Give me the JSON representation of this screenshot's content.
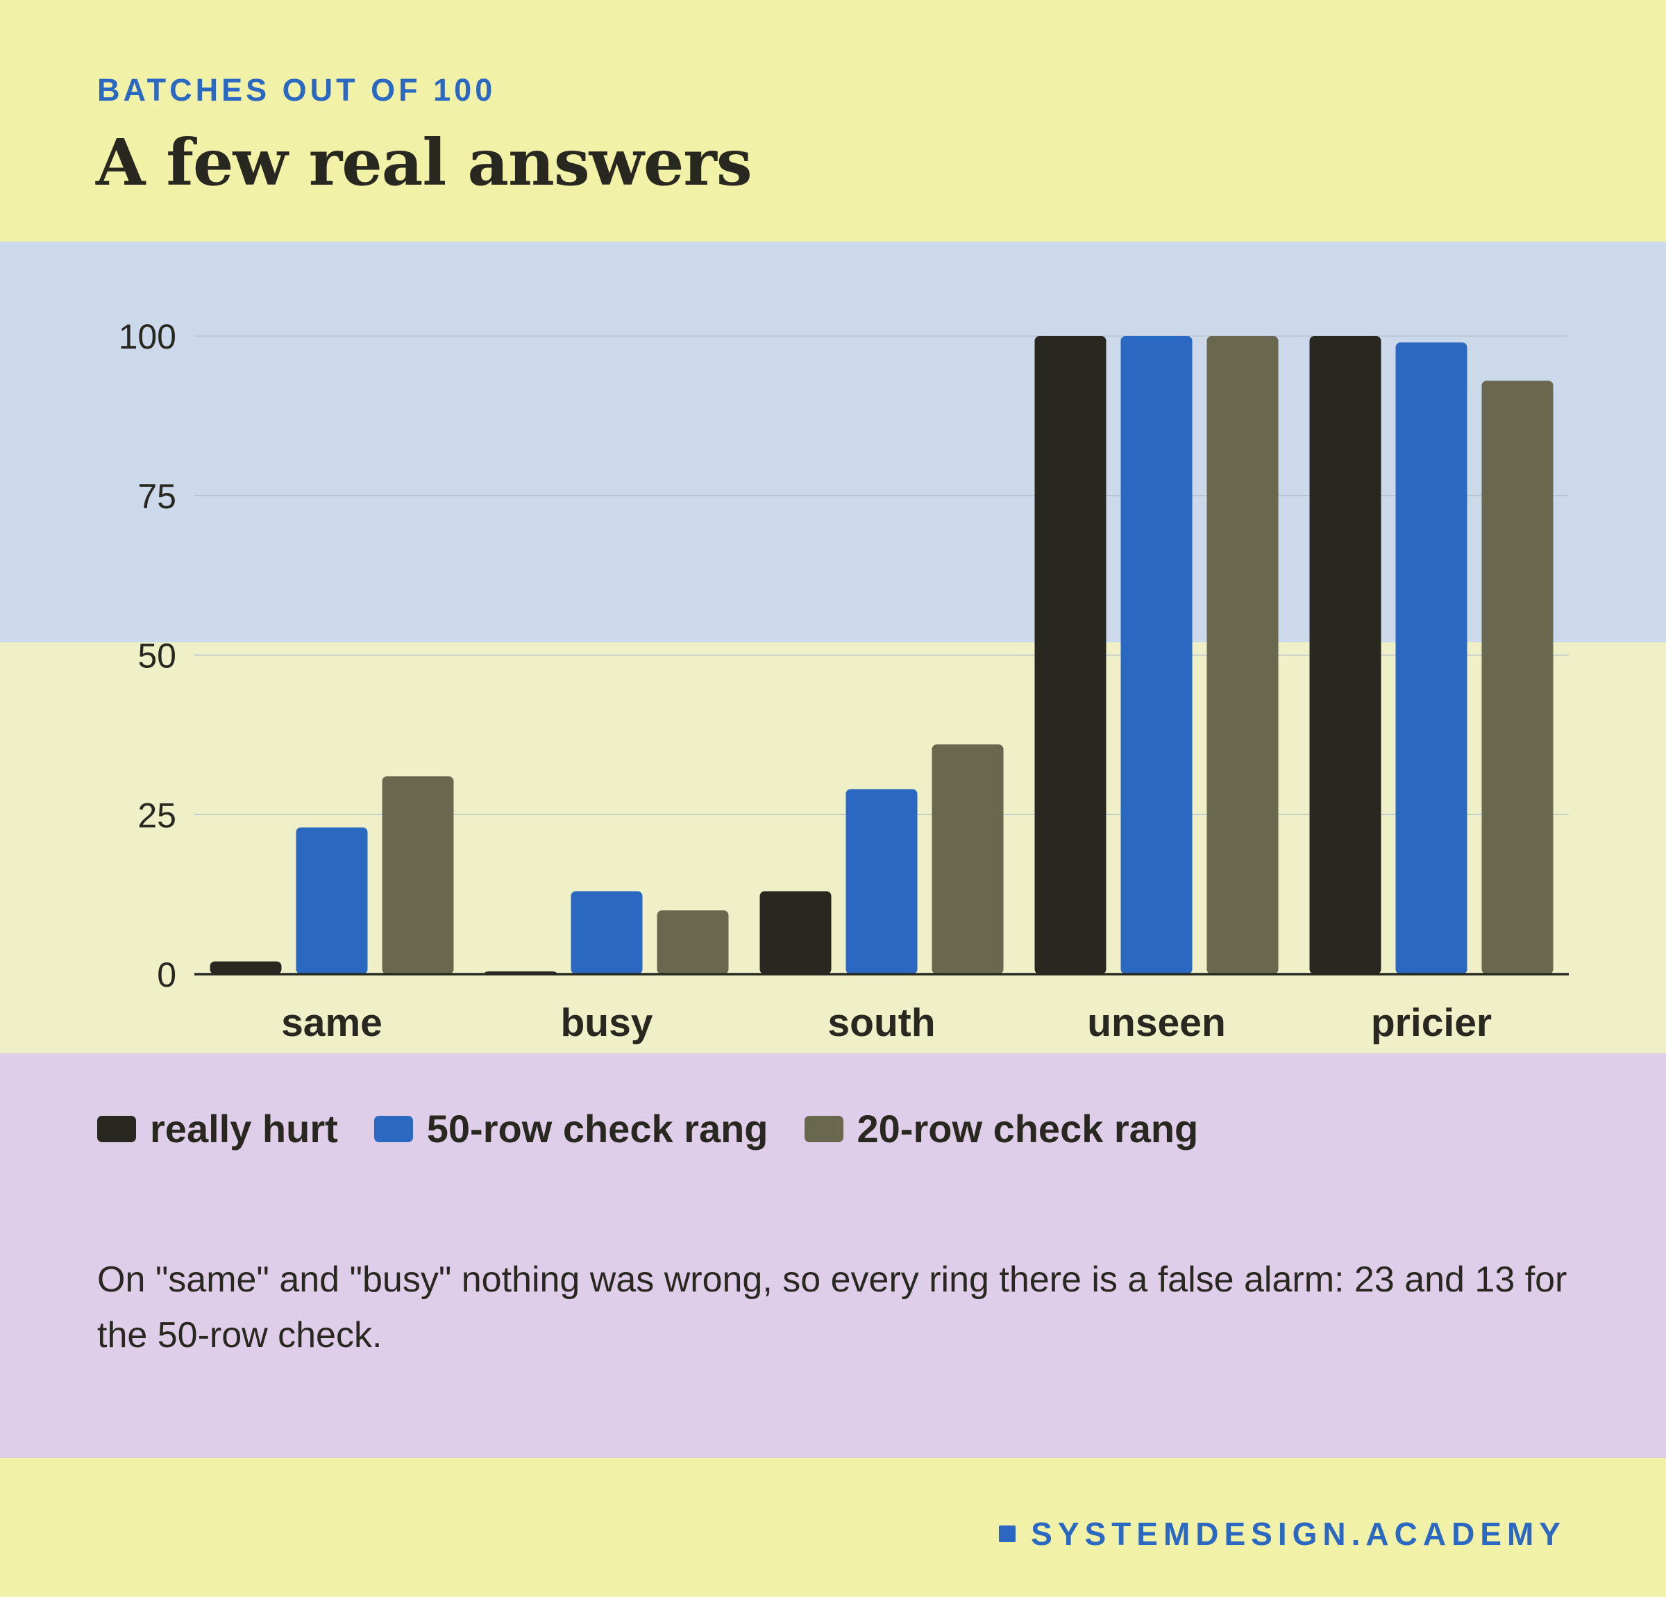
{
  "header": {
    "eyebrow": "BATCHES OUT OF 100",
    "title": "A few real answers"
  },
  "chart_data": {
    "type": "bar",
    "categories": [
      "same",
      "busy",
      "south",
      "unseen",
      "pricier"
    ],
    "series": [
      {
        "name": "really hurt",
        "color": "#292820",
        "values": [
          2,
          0,
          13,
          100,
          100
        ]
      },
      {
        "name": "50-row check rang",
        "color": "#2a68c1",
        "values": [
          23,
          13,
          29,
          100,
          99
        ]
      },
      {
        "name": "20-row check rang",
        "color": "#69684e",
        "values": [
          31,
          10,
          36,
          100,
          93
        ]
      }
    ],
    "ylim": [
      0,
      100
    ],
    "yticks": [
      0,
      25,
      50,
      75,
      100
    ],
    "grid": true,
    "bands": [
      {
        "from": 52,
        "to": 115,
        "color": "#cbd9ea"
      },
      {
        "from": -13,
        "to": 52,
        "color": "#f0f0c8"
      }
    ],
    "legend_position": "bottom-left"
  },
  "caption": "On \"same\" and \"busy\" nothing was wrong, so every ring there is a false alarm: 23 and 13 for the 50-row check.",
  "footer": {
    "brand": "SYSTEMDESIGN.ACADEMY"
  },
  "colors": {
    "background": "#f1f1a7",
    "accent": "#2a68c1",
    "text": "#292820",
    "legend_band": "#dfcee9"
  }
}
